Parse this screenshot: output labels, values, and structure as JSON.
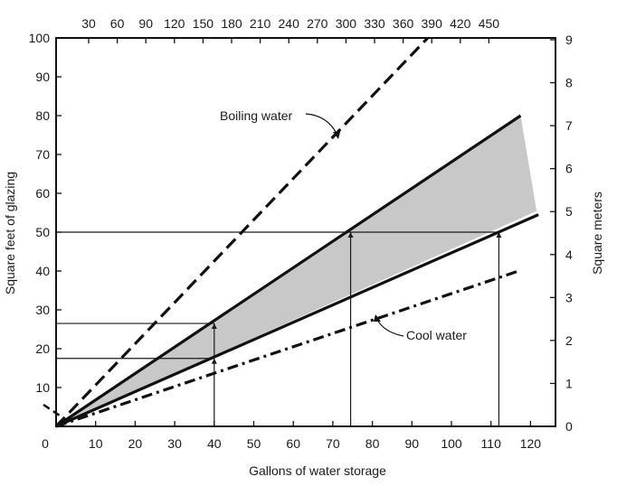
{
  "chart_data": {
    "type": "line",
    "xlabel": "Gallons of water storage",
    "ylabel": "Square feet of glazing",
    "y2label": "Square meters",
    "xlim": [
      0,
      125
    ],
    "ylim": [
      0,
      100
    ],
    "x_ticks": [
      "0",
      "10",
      "20",
      "30",
      "40",
      "50",
      "60",
      "70",
      "80",
      "90",
      "100",
      "110",
      "120"
    ],
    "y_ticks": [
      "10",
      "20",
      "30",
      "40",
      "50",
      "60",
      "70",
      "80",
      "90",
      "100"
    ],
    "top_ticks": [
      "30",
      "60",
      "90",
      "120",
      "150",
      "180",
      "210",
      "240",
      "270",
      "300",
      "330",
      "360",
      "390",
      "420",
      "450"
    ],
    "right_ticks": [
      "0",
      "1",
      "2",
      "3",
      "4",
      "5",
      "6",
      "7",
      "8",
      "9"
    ],
    "series": [
      {
        "style": "dashed",
        "x": [
          0,
          94
        ],
        "y": [
          0,
          100
        ]
      },
      {
        "style": "solid",
        "x": [
          0,
          117.5
        ],
        "y": [
          0,
          80
        ]
      },
      {
        "style": "solid",
        "x": [
          0,
          122
        ],
        "y": [
          0,
          54.5
        ]
      },
      {
        "style": "dash-dot",
        "x": [
          0,
          117
        ],
        "y": [
          0,
          40
        ]
      }
    ],
    "shaded_band": {
      "between": "solid lines",
      "color": "#c8c8c8"
    },
    "reference_lines": [
      {
        "y": 17.5,
        "x_start": 0,
        "x_end": 40
      },
      {
        "y": 26.5,
        "x_start": 0,
        "x_end": 40
      },
      {
        "y": 50,
        "x_start": 0,
        "x_end": 112
      },
      {
        "x": 40,
        "y_start": 0,
        "y_end": 26.5
      },
      {
        "x": 74.5,
        "y_start": 0,
        "y_end": 50
      },
      {
        "x": 112,
        "y_start": 0,
        "y_end": 50
      }
    ],
    "annotations": [
      {
        "text": "Boiling water"
      },
      {
        "text": "Cool water"
      }
    ]
  }
}
